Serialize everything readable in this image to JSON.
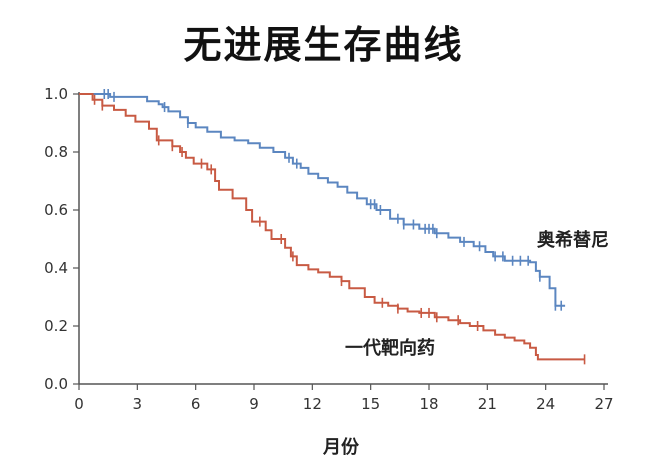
{
  "chart_data": {
    "type": "line",
    "title": "无进展生存曲线",
    "xlabel": "月份",
    "ylabel": "",
    "xlim": [
      0,
      27
    ],
    "ylim": [
      0,
      1.0
    ],
    "xticks": [
      "0",
      "3",
      "6",
      "9",
      "12",
      "15",
      "18",
      "21",
      "24",
      "27"
    ],
    "yticks": [
      "0.0",
      "0.2",
      "0.4",
      "0.6",
      "0.8",
      "1.0"
    ],
    "grid": false,
    "legend": "inline labels",
    "series": [
      {
        "name": "奥希替尼",
        "color": "#5b86c0",
        "points": [
          [
            0,
            1.0
          ],
          [
            1.3,
            1.0
          ],
          [
            1.6,
            0.99
          ],
          [
            2.8,
            0.99
          ],
          [
            3.5,
            0.975
          ],
          [
            4.1,
            0.965
          ],
          [
            4.3,
            0.955
          ],
          [
            4.6,
            0.94
          ],
          [
            5.2,
            0.92
          ],
          [
            5.6,
            0.9
          ],
          [
            6.0,
            0.885
          ],
          [
            6.6,
            0.87
          ],
          [
            7.3,
            0.85
          ],
          [
            8.0,
            0.84
          ],
          [
            8.7,
            0.83
          ],
          [
            9.3,
            0.815
          ],
          [
            10.0,
            0.8
          ],
          [
            10.6,
            0.78
          ],
          [
            11.0,
            0.76
          ],
          [
            11.4,
            0.745
          ],
          [
            11.8,
            0.725
          ],
          [
            12.3,
            0.71
          ],
          [
            12.8,
            0.695
          ],
          [
            13.3,
            0.68
          ],
          [
            13.8,
            0.66
          ],
          [
            14.3,
            0.64
          ],
          [
            14.8,
            0.62
          ],
          [
            15.3,
            0.6
          ],
          [
            16.0,
            0.57
          ],
          [
            16.7,
            0.55
          ],
          [
            17.5,
            0.535
          ],
          [
            18.3,
            0.52
          ],
          [
            19.0,
            0.505
          ],
          [
            19.6,
            0.49
          ],
          [
            20.3,
            0.475
          ],
          [
            20.9,
            0.455
          ],
          [
            21.3,
            0.44
          ],
          [
            21.9,
            0.425
          ],
          [
            23.2,
            0.42
          ],
          [
            23.5,
            0.39
          ],
          [
            23.7,
            0.37
          ],
          [
            24.2,
            0.33
          ],
          [
            24.5,
            0.27
          ],
          [
            25.0,
            0.27
          ]
        ],
        "censor_x": [
          1.3,
          1.5,
          1.8,
          4.4,
          5.6,
          10.8,
          11.2,
          15.0,
          15.2,
          15.5,
          16.4,
          16.7,
          17.2,
          17.8,
          18.0,
          18.2,
          18.4,
          19.8,
          20.6,
          21.4,
          21.8,
          22.3,
          22.7,
          23.1,
          23.7,
          24.5,
          24.8
        ]
      },
      {
        "name": "一代靶向药",
        "color": "#c85a43",
        "points": [
          [
            0,
            1.0
          ],
          [
            0.7,
            0.98
          ],
          [
            1.2,
            0.96
          ],
          [
            1.8,
            0.945
          ],
          [
            2.4,
            0.925
          ],
          [
            2.9,
            0.905
          ],
          [
            3.6,
            0.88
          ],
          [
            4.0,
            0.84
          ],
          [
            4.8,
            0.82
          ],
          [
            5.2,
            0.8
          ],
          [
            5.5,
            0.78
          ],
          [
            5.9,
            0.76
          ],
          [
            6.6,
            0.74
          ],
          [
            7.0,
            0.7
          ],
          [
            7.2,
            0.67
          ],
          [
            7.9,
            0.64
          ],
          [
            8.6,
            0.6
          ],
          [
            8.9,
            0.56
          ],
          [
            9.6,
            0.53
          ],
          [
            9.9,
            0.5
          ],
          [
            10.6,
            0.47
          ],
          [
            10.9,
            0.44
          ],
          [
            11.2,
            0.41
          ],
          [
            11.8,
            0.395
          ],
          [
            12.3,
            0.385
          ],
          [
            12.9,
            0.37
          ],
          [
            13.5,
            0.355
          ],
          [
            13.9,
            0.33
          ],
          [
            14.7,
            0.3
          ],
          [
            15.2,
            0.28
          ],
          [
            15.9,
            0.27
          ],
          [
            16.4,
            0.26
          ],
          [
            16.9,
            0.25
          ],
          [
            17.5,
            0.245
          ],
          [
            18.3,
            0.23
          ],
          [
            19.0,
            0.22
          ],
          [
            19.6,
            0.21
          ],
          [
            20.1,
            0.2
          ],
          [
            20.8,
            0.185
          ],
          [
            21.4,
            0.17
          ],
          [
            21.9,
            0.16
          ],
          [
            22.4,
            0.15
          ],
          [
            22.9,
            0.14
          ],
          [
            23.2,
            0.125
          ],
          [
            23.5,
            0.1
          ],
          [
            23.6,
            0.085
          ],
          [
            26.0,
            0.085
          ]
        ],
        "censor_x": [
          0.8,
          1.2,
          4.1,
          4.8,
          5.3,
          6.3,
          6.8,
          9.3,
          10.4,
          11.0,
          13.5,
          15.6,
          16.4,
          17.6,
          18.0,
          18.4,
          19.5,
          20.5,
          26.0
        ]
      }
    ]
  }
}
